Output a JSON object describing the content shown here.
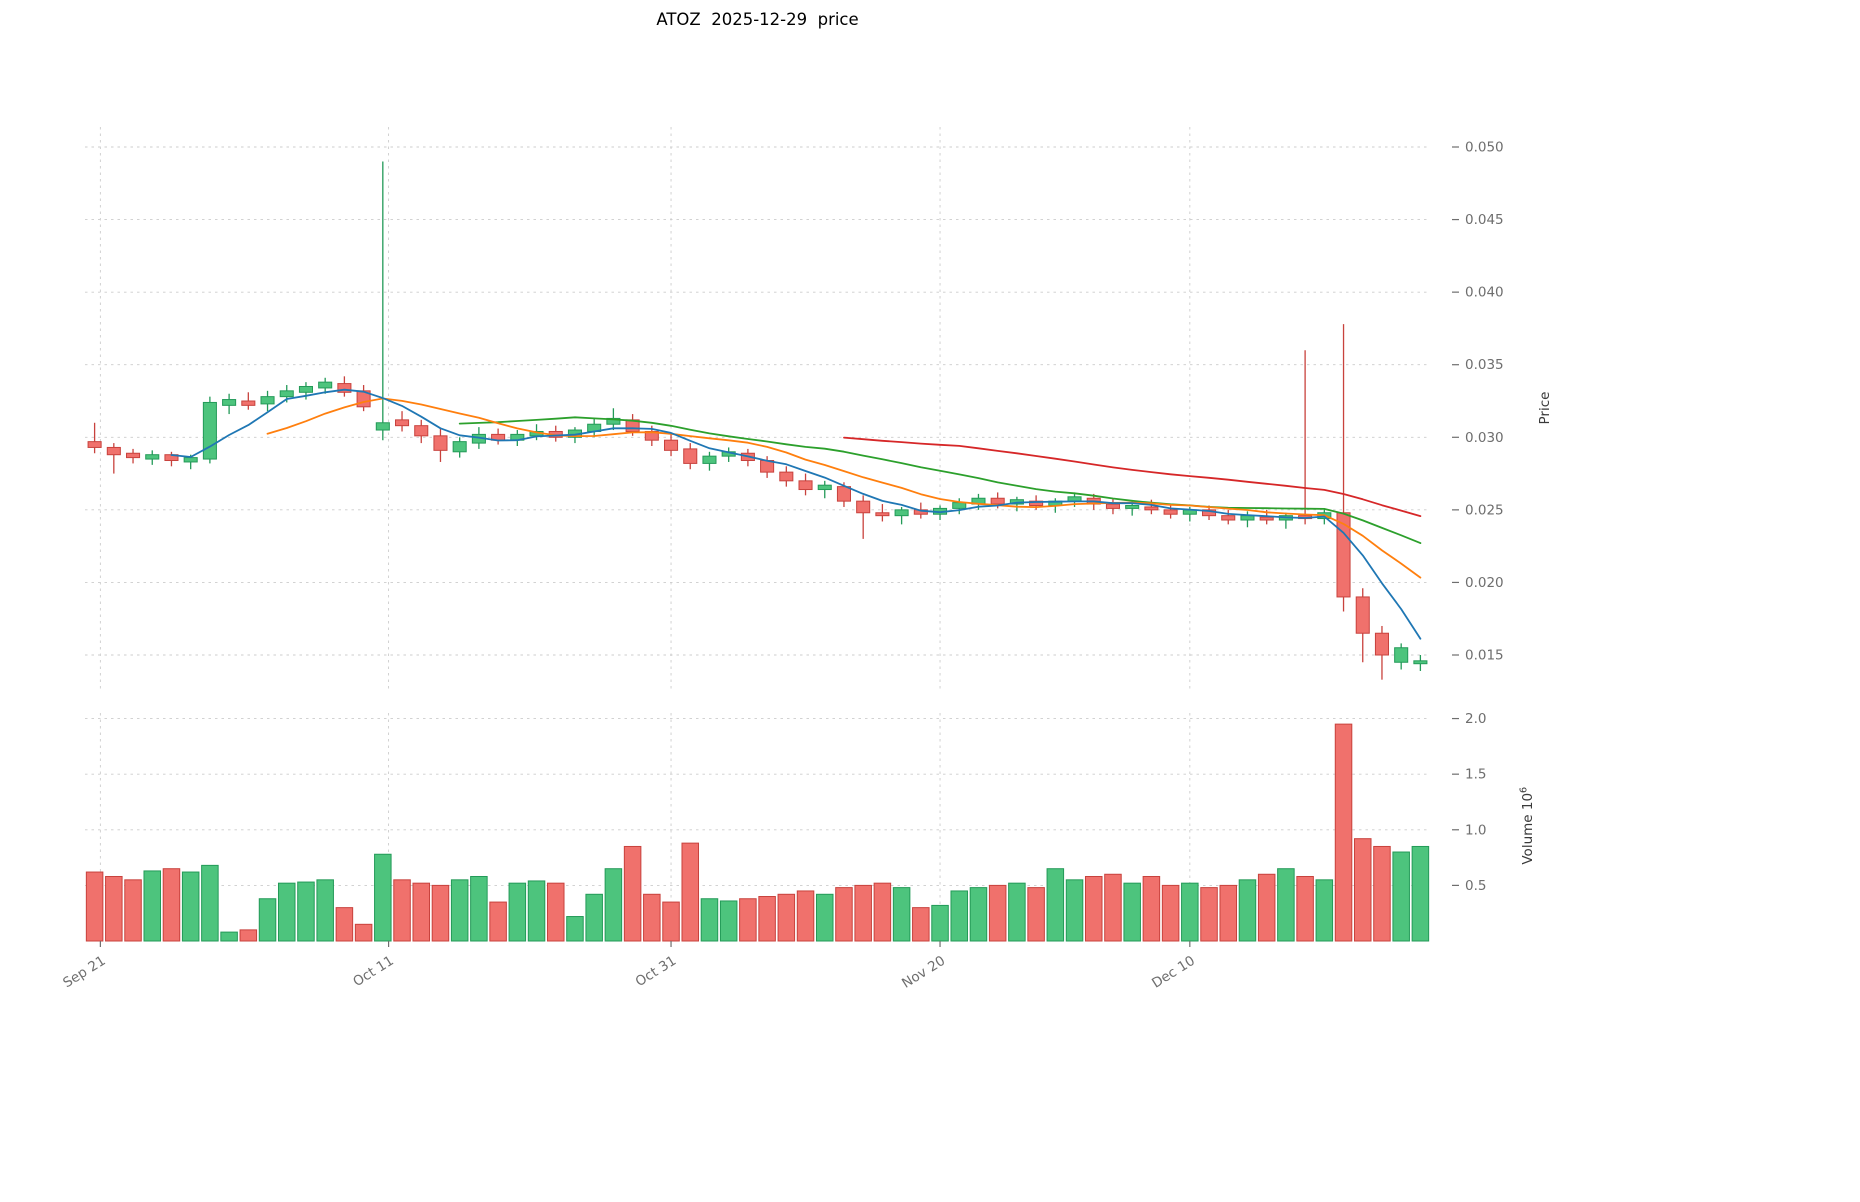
{
  "title": "ATOZ  2025-12-29  price",
  "price_axis_label": "Price",
  "volume_axis_label": "Volume  10",
  "volume_axis_exponent": "6",
  "colors": {
    "up": "#4dc47d",
    "up_edge": "#239a58",
    "down": "#f0716c",
    "down_edge": "#c8423d",
    "ma_short": "#1f77b4",
    "ma_mid": "#ff7f0e",
    "ma_long": "#2ca02c",
    "ma_xlong": "#d62728",
    "grid": "#cccccc",
    "tick": "#6e6e6e",
    "title": "#000000"
  },
  "chart_data": {
    "type": "candlestick+volume",
    "title": "ATOZ  2025-12-29  price",
    "ylabel_price": "Price",
    "ylabel_volume": "Volume 10^6",
    "grid": true,
    "price_ylim": [
      0.013,
      0.0515
    ],
    "volume_ylim": [
      0,
      2.05
    ],
    "volume_unit": 1000000,
    "price_ticks": [
      0.015,
      0.02,
      0.025,
      0.03,
      0.035,
      0.04,
      0.045,
      0.05
    ],
    "volume_ticks": [
      0.5,
      1.0,
      1.5,
      2.0
    ],
    "x_ticks": [
      {
        "pos": 0.3,
        "label": "Sep 21"
      },
      {
        "pos": 15.3,
        "label": "Oct 11"
      },
      {
        "pos": 30,
        "label": "Oct 31"
      },
      {
        "pos": 44,
        "label": "Nov 20"
      },
      {
        "pos": 57,
        "label": "Dec 10"
      }
    ],
    "overlays": [
      {
        "name": "sma-40",
        "window": 40,
        "color_key": "ma_xlong"
      },
      {
        "name": "sma-20",
        "window": 20,
        "color_key": "ma_long"
      },
      {
        "name": "sma-10",
        "window": 10,
        "color_key": "ma_mid"
      },
      {
        "name": "sma-5",
        "window": 5,
        "color_key": "ma_short"
      }
    ],
    "dates": [
      "2025-09-19",
      "2025-09-22",
      "2025-09-23",
      "2025-09-24",
      "2025-09-25",
      "2025-09-26",
      "2025-09-29",
      "2025-09-30",
      "2025-10-01",
      "2025-10-02",
      "2025-10-03",
      "2025-10-06",
      "2025-10-07",
      "2025-10-08",
      "2025-10-09",
      "2025-10-10",
      "2025-10-13",
      "2025-10-14",
      "2025-10-15",
      "2025-10-16",
      "2025-10-17",
      "2025-10-20",
      "2025-10-21",
      "2025-10-22",
      "2025-10-23",
      "2025-10-24",
      "2025-10-27",
      "2025-10-28",
      "2025-10-29",
      "2025-10-30",
      "2025-10-31",
      "2025-11-03",
      "2025-11-04",
      "2025-11-05",
      "2025-11-06",
      "2025-11-07",
      "2025-11-10",
      "2025-11-11",
      "2025-11-12",
      "2025-11-13",
      "2025-11-14",
      "2025-11-17",
      "2025-11-18",
      "2025-11-19",
      "2025-11-20",
      "2025-11-21",
      "2025-11-24",
      "2025-11-25",
      "2025-11-26",
      "2025-11-28",
      "2025-12-01",
      "2025-12-02",
      "2025-12-03",
      "2025-12-04",
      "2025-12-05",
      "2025-12-08",
      "2025-12-09",
      "2025-12-10",
      "2025-12-11",
      "2025-12-12",
      "2025-12-15",
      "2025-12-16",
      "2025-12-17",
      "2025-12-18",
      "2025-12-19",
      "2025-12-22",
      "2025-12-23",
      "2025-12-24",
      "2025-12-26",
      "2025-12-29"
    ],
    "ohlc": [
      [
        0.0297,
        0.031,
        0.0289,
        0.0293
      ],
      [
        0.0293,
        0.0296,
        0.0275,
        0.0288
      ],
      [
        0.0289,
        0.0292,
        0.0282,
        0.0286
      ],
      [
        0.0285,
        0.0291,
        0.0281,
        0.0288
      ],
      [
        0.0288,
        0.029,
        0.028,
        0.0284
      ],
      [
        0.0283,
        0.0288,
        0.0278,
        0.0286
      ],
      [
        0.0285,
        0.0328,
        0.0282,
        0.0324
      ],
      [
        0.0322,
        0.033,
        0.0316,
        0.0326
      ],
      [
        0.0325,
        0.0331,
        0.0319,
        0.0322
      ],
      [
        0.0323,
        0.0332,
        0.0318,
        0.0328
      ],
      [
        0.0328,
        0.0336,
        0.0324,
        0.0332
      ],
      [
        0.0331,
        0.0338,
        0.0326,
        0.0335
      ],
      [
        0.0334,
        0.0341,
        0.033,
        0.0338
      ],
      [
        0.0337,
        0.0342,
        0.0328,
        0.0331
      ],
      [
        0.0332,
        0.0336,
        0.0318,
        0.0321
      ],
      [
        0.0305,
        0.049,
        0.0298,
        0.031
      ],
      [
        0.0312,
        0.0318,
        0.0304,
        0.0308
      ],
      [
        0.0308,
        0.0312,
        0.0296,
        0.0301
      ],
      [
        0.0301,
        0.0306,
        0.0283,
        0.0291
      ],
      [
        0.029,
        0.03,
        0.0286,
        0.0297
      ],
      [
        0.0296,
        0.0307,
        0.0292,
        0.0302
      ],
      [
        0.0302,
        0.0306,
        0.0295,
        0.0298
      ],
      [
        0.0298,
        0.0305,
        0.0294,
        0.0302
      ],
      [
        0.0301,
        0.0309,
        0.0298,
        0.0304
      ],
      [
        0.0304,
        0.0308,
        0.0297,
        0.03
      ],
      [
        0.03,
        0.0307,
        0.0296,
        0.0305
      ],
      [
        0.0304,
        0.0313,
        0.03,
        0.0309
      ],
      [
        0.0309,
        0.032,
        0.0305,
        0.0313
      ],
      [
        0.0312,
        0.0316,
        0.0301,
        0.0304
      ],
      [
        0.0304,
        0.0308,
        0.0294,
        0.0298
      ],
      [
        0.0298,
        0.0302,
        0.0287,
        0.0291
      ],
      [
        0.0292,
        0.0296,
        0.0278,
        0.0282
      ],
      [
        0.0282,
        0.029,
        0.0277,
        0.0287
      ],
      [
        0.0287,
        0.0293,
        0.0283,
        0.029
      ],
      [
        0.0289,
        0.0292,
        0.028,
        0.0284
      ],
      [
        0.0284,
        0.0287,
        0.0272,
        0.0276
      ],
      [
        0.0276,
        0.028,
        0.0266,
        0.027
      ],
      [
        0.027,
        0.0275,
        0.026,
        0.0264
      ],
      [
        0.0264,
        0.027,
        0.0258,
        0.0267
      ],
      [
        0.0266,
        0.0269,
        0.0252,
        0.0256
      ],
      [
        0.0256,
        0.026,
        0.023,
        0.0248
      ],
      [
        0.0248,
        0.0254,
        0.0242,
        0.0246
      ],
      [
        0.0246,
        0.0252,
        0.024,
        0.025
      ],
      [
        0.025,
        0.0255,
        0.0244,
        0.0247
      ],
      [
        0.0247,
        0.0253,
        0.0243,
        0.0251
      ],
      [
        0.0251,
        0.0258,
        0.0247,
        0.0255
      ],
      [
        0.0254,
        0.0261,
        0.025,
        0.0258
      ],
      [
        0.0258,
        0.0262,
        0.0251,
        0.0254
      ],
      [
        0.0254,
        0.0259,
        0.0249,
        0.0257
      ],
      [
        0.0256,
        0.026,
        0.025,
        0.0253
      ],
      [
        0.0253,
        0.0258,
        0.0248,
        0.0256
      ],
      [
        0.0256,
        0.0262,
        0.0252,
        0.0259
      ],
      [
        0.0258,
        0.0261,
        0.025,
        0.0254
      ],
      [
        0.0254,
        0.0258,
        0.0247,
        0.0251
      ],
      [
        0.0251,
        0.0256,
        0.0246,
        0.0253
      ],
      [
        0.0252,
        0.0257,
        0.0247,
        0.025
      ],
      [
        0.025,
        0.0254,
        0.0244,
        0.0247
      ],
      [
        0.0247,
        0.0252,
        0.0242,
        0.025
      ],
      [
        0.025,
        0.0253,
        0.0243,
        0.0246
      ],
      [
        0.0246,
        0.025,
        0.024,
        0.0243
      ],
      [
        0.0243,
        0.0249,
        0.0238,
        0.0246
      ],
      [
        0.0245,
        0.025,
        0.024,
        0.0243
      ],
      [
        0.0243,
        0.0248,
        0.0237,
        0.0246
      ],
      [
        0.0246,
        0.036,
        0.024,
        0.0244
      ],
      [
        0.0244,
        0.0251,
        0.024,
        0.0248
      ],
      [
        0.0248,
        0.0378,
        0.018,
        0.019
      ],
      [
        0.019,
        0.0196,
        0.0145,
        0.0165
      ],
      [
        0.0165,
        0.017,
        0.0133,
        0.015
      ],
      [
        0.0145,
        0.0158,
        0.014,
        0.0155
      ],
      [
        0.0144,
        0.015,
        0.0139,
        0.0146
      ]
    ],
    "volumes": [
      0.62,
      0.58,
      0.55,
      0.63,
      0.65,
      0.62,
      0.68,
      0.08,
      0.1,
      0.38,
      0.52,
      0.53,
      0.55,
      0.3,
      0.15,
      0.78,
      0.55,
      0.52,
      0.5,
      0.55,
      0.58,
      0.35,
      0.52,
      0.54,
      0.52,
      0.22,
      0.42,
      0.65,
      0.85,
      0.42,
      0.35,
      0.88,
      0.38,
      0.36,
      0.38,
      0.4,
      0.42,
      0.45,
      0.42,
      0.48,
      0.5,
      0.52,
      0.48,
      0.3,
      0.32,
      0.45,
      0.48,
      0.5,
      0.52,
      0.48,
      0.65,
      0.55,
      0.58,
      0.6,
      0.52,
      0.58,
      0.5,
      0.52,
      0.48,
      0.5,
      0.55,
      0.6,
      0.65,
      0.58,
      0.55,
      1.95,
      0.92,
      0.85,
      0.8,
      0.85
    ]
  }
}
